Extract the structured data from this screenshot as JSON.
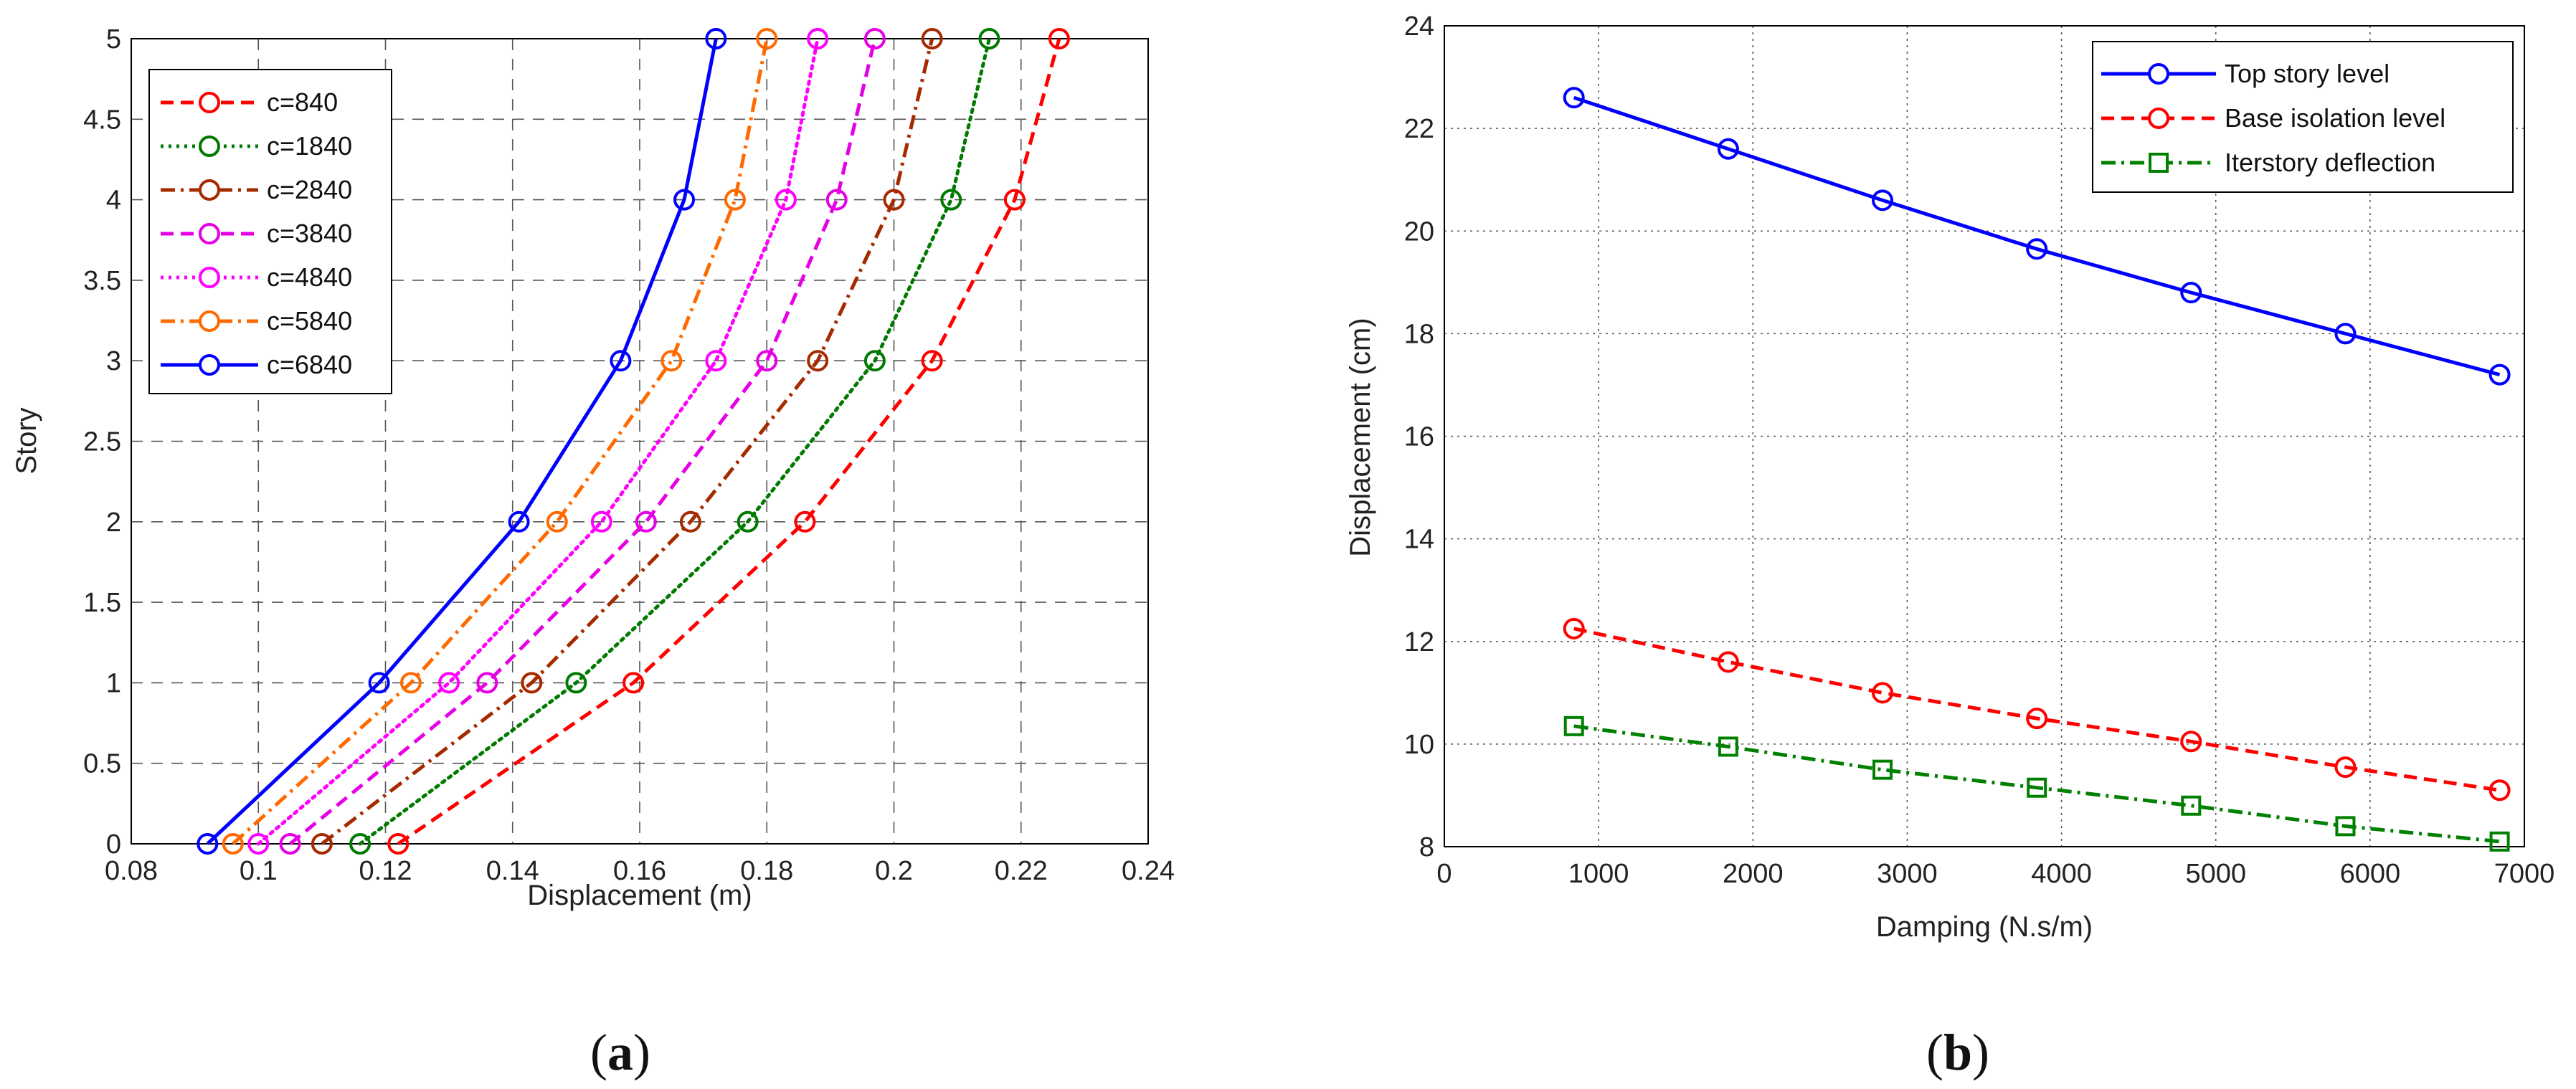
{
  "chart_data": [
    {
      "type": "line",
      "caption_prefix": "(",
      "caption_letter": "a",
      "caption_suffix": ")",
      "xlabel": "Displacement (m)",
      "ylabel": "Story",
      "xlim": [
        0.08,
        0.24
      ],
      "ylim": [
        0,
        5
      ],
      "xticks": [
        0.08,
        0.1,
        0.12,
        0.14,
        0.16,
        0.18,
        0.2,
        0.22,
        0.24
      ],
      "xtick_labels": [
        "0.08",
        "0.1",
        "0.12",
        "0.14",
        "0.16",
        "0.18",
        "0.2",
        "0.22",
        "0.24"
      ],
      "yticks": [
        0,
        0.5,
        1,
        1.5,
        2,
        2.5,
        3,
        3.5,
        4,
        4.5,
        5
      ],
      "ytick_labels": [
        "0",
        "0.5",
        "1",
        "1.5",
        "2",
        "2.5",
        "3",
        "3.5",
        "4",
        "4.5",
        "5"
      ],
      "grid": true,
      "grid_style": "dashed",
      "legend_position": "top-left",
      "y": [
        0,
        1,
        2,
        3,
        4,
        5
      ],
      "series": [
        {
          "name": "c=840",
          "color": "#ff0000",
          "dash": "dashed",
          "marker": "circle",
          "x": [
            0.122,
            0.159,
            0.186,
            0.206,
            0.219,
            0.226
          ]
        },
        {
          "name": "c=1840",
          "color": "#007a00",
          "dash": "dotted",
          "marker": "circle",
          "x": [
            0.116,
            0.15,
            0.177,
            0.197,
            0.209,
            0.215
          ]
        },
        {
          "name": "c=2840",
          "color": "#a52a00",
          "dash": "dashdot",
          "marker": "circle",
          "x": [
            0.11,
            0.143,
            0.168,
            0.188,
            0.2,
            0.206
          ]
        },
        {
          "name": "c=3840",
          "color": "#e600e6",
          "dash": "dashed",
          "marker": "circle",
          "x": [
            0.105,
            0.136,
            0.161,
            0.18,
            0.191,
            0.197
          ]
        },
        {
          "name": "c=4840",
          "color": "#ff00ff",
          "dash": "dotted",
          "marker": "circle",
          "x": [
            0.1,
            0.13,
            0.154,
            0.172,
            0.183,
            0.188
          ]
        },
        {
          "name": "c=5840",
          "color": "#ff6a00",
          "dash": "dashdot",
          "marker": "circle",
          "x": [
            0.096,
            0.124,
            0.147,
            0.165,
            0.175,
            0.18
          ]
        },
        {
          "name": "c=6840",
          "color": "#0000ff",
          "dash": "solid",
          "marker": "circle",
          "x": [
            0.092,
            0.119,
            0.141,
            0.157,
            0.167,
            0.172
          ]
        }
      ]
    },
    {
      "type": "line",
      "caption_prefix": "(",
      "caption_letter": "b",
      "caption_suffix": ")",
      "xlabel": "Damping (N.s/m)",
      "ylabel": "Displacement (cm)",
      "xlim": [
        0,
        7000
      ],
      "ylim": [
        8,
        24
      ],
      "xticks": [
        0,
        1000,
        2000,
        3000,
        4000,
        5000,
        6000,
        7000
      ],
      "xtick_labels": [
        "0",
        "1000",
        "2000",
        "3000",
        "4000",
        "5000",
        "6000",
        "7000"
      ],
      "yticks": [
        8,
        10,
        12,
        14,
        16,
        18,
        20,
        22,
        24
      ],
      "ytick_labels": [
        "8",
        "10",
        "12",
        "14",
        "16",
        "18",
        "20",
        "22",
        "24"
      ],
      "grid": true,
      "grid_style": "dotted",
      "legend_position": "top-right",
      "x": [
        840,
        1840,
        2840,
        3840,
        4840,
        5840,
        6840
      ],
      "series": [
        {
          "name": "Top story level",
          "color": "#0000ff",
          "dash": "solid",
          "marker": "circle",
          "values": [
            22.6,
            21.6,
            20.6,
            19.65,
            18.8,
            18.0,
            17.2
          ]
        },
        {
          "name": "Base isolation level",
          "color": "#ff0000",
          "dash": "dashed",
          "marker": "circle",
          "values": [
            12.25,
            11.6,
            11.0,
            10.5,
            10.05,
            9.55,
            9.1
          ]
        },
        {
          "name": "Iterstory deflection",
          "color": "#008000",
          "dash": "dashdot",
          "marker": "square",
          "values": [
            10.35,
            9.95,
            9.5,
            9.15,
            8.8,
            8.4,
            8.1
          ]
        }
      ]
    }
  ]
}
